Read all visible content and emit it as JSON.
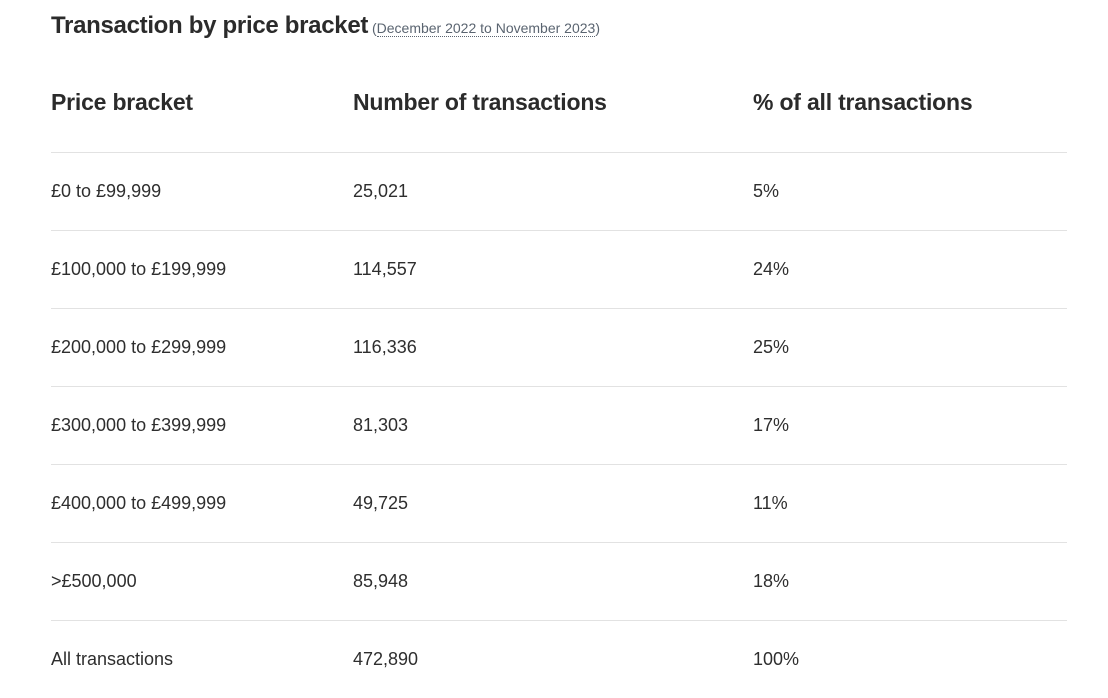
{
  "heading": {
    "title": "Transaction by price bracket",
    "paren_open": " (",
    "period": "December 2022 to November 2023",
    "paren_close": ")"
  },
  "table": {
    "columns": [
      "Price bracket",
      "Number of transactions",
      "% of all transactions"
    ],
    "rows": [
      {
        "bracket": "£0 to £99,999",
        "count": "25,021",
        "percent": "5%"
      },
      {
        "bracket": "£100,000 to £199,999",
        "count": "114,557",
        "percent": "24%"
      },
      {
        "bracket": "£200,000 to £299,999",
        "count": "116,336",
        "percent": "25%"
      },
      {
        "bracket": "£300,000 to £399,999",
        "count": "81,303",
        "percent": "17%"
      },
      {
        "bracket": "£400,000 to £499,999",
        "count": "49,725",
        "percent": "11%"
      },
      {
        "bracket": ">£500,000",
        "count": "85,948",
        "percent": "18%"
      },
      {
        "bracket": "All transactions",
        "count": "472,890",
        "percent": "100%"
      }
    ]
  }
}
